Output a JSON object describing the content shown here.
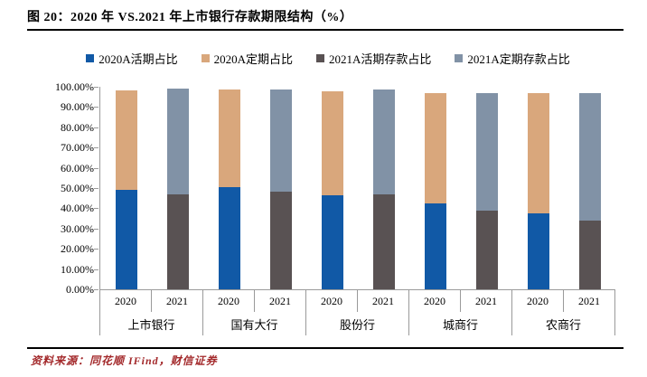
{
  "figure": {
    "title": "图 20：2020 年 VS.2021 年上市银行存款期限结构（%）",
    "source": "资料来源：同花顺 IFind，财信证券"
  },
  "chart_data": {
    "type": "bar",
    "stacked": true,
    "legend_position": "top",
    "grid": false,
    "groups": [
      "上市银行",
      "国有大行",
      "股份行",
      "城商行",
      "农商行"
    ],
    "bar_labels": [
      "2020",
      "2021"
    ],
    "series": [
      {
        "name": "2020A活期占比",
        "bar": "2020",
        "stack_order": "bottom",
        "color": "#1159a6",
        "values": [
          48.9,
          50.3,
          46.6,
          42.5,
          37.5
        ]
      },
      {
        "name": "2020A定期占比",
        "bar": "2020",
        "stack_order": "top",
        "color": "#d9a77c",
        "values": [
          49.4,
          48.2,
          51.2,
          54.4,
          59.4
        ]
      },
      {
        "name": "2021A活期存款占比",
        "bar": "2021",
        "stack_order": "bottom",
        "color": "#595253",
        "values": [
          46.9,
          48.4,
          46.7,
          38.7,
          33.9
        ]
      },
      {
        "name": "2021A定期存款占比",
        "bar": "2021",
        "stack_order": "top",
        "color": "#8192a6",
        "values": [
          52.1,
          50.1,
          51.8,
          58.2,
          62.8
        ]
      }
    ],
    "ylim": [
      0,
      100
    ],
    "yticks": [
      "100.00%",
      "90.00%",
      "80.00%",
      "70.00%",
      "60.00%",
      "50.00%",
      "40.00%",
      "30.00%",
      "20.00%",
      "10.00%",
      "0.00%"
    ]
  }
}
